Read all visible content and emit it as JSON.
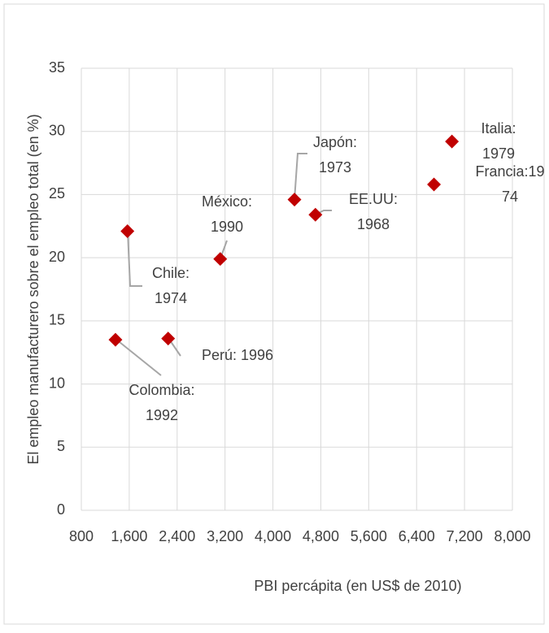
{
  "chart_data": {
    "type": "scatter",
    "x_label": "PBI percápita (en US$ de 2010)",
    "y_label": "El empleo manufacturero sobre el empleo total (en %)",
    "xlim": [
      800,
      8000
    ],
    "xticks": [
      800,
      {
        "value": 1600,
        "label": "1,600"
      },
      {
        "value": 2400,
        "label": "2,400"
      },
      {
        "value": 3200,
        "label": "3,200"
      },
      {
        "value": 4000,
        "label": "4,000"
      },
      {
        "value": 4800,
        "label": "4,800"
      },
      {
        "value": 5600,
        "label": "5,600"
      },
      {
        "value": 6400,
        "label": "6,400"
      },
      {
        "value": 7200,
        "label": "7,200"
      },
      {
        "value": 8000,
        "label": "8,000"
      }
    ],
    "ylim": [
      0,
      35
    ],
    "yticks": [
      0,
      5,
      10,
      15,
      20,
      25,
      30,
      35
    ],
    "grid": true,
    "color": "#c00000",
    "x": [
      1370,
      1570,
      2250,
      3120,
      4360,
      4710,
      6690,
      6990
    ],
    "values": [
      13.5,
      22.1,
      13.6,
      19.9,
      24.6,
      23.4,
      25.8,
      29.2
    ],
    "point_labels": [
      [
        "Colombia:",
        "1992"
      ],
      [
        "Chile:",
        "1974"
      ],
      [
        "Perú: 1996"
      ],
      [
        "México:",
        "1990"
      ],
      [
        "Japón:",
        "1973"
      ],
      [
        "EE.UU:",
        "1968"
      ],
      [
        "Francia:19",
        "74"
      ],
      [
        "Italia:",
        "1979"
      ]
    ]
  }
}
